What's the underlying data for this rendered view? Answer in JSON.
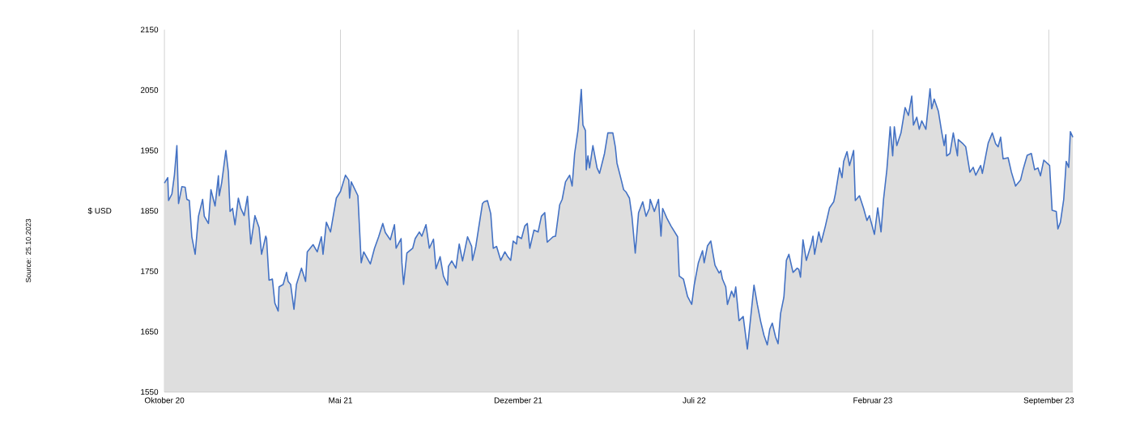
{
  "chart_data": {
    "type": "area",
    "ylabel": "$ USD",
    "annotations": [
      "Source: 25.10.2023"
    ],
    "grid": "x",
    "ylim": [
      1550,
      2150
    ],
    "yticks": [
      1550,
      1650,
      1750,
      1850,
      1950,
      2050,
      2150
    ],
    "xlim": [
      "2020-10-26",
      "2023-10-25"
    ],
    "xticks": [
      {
        "value": "2020-10-26",
        "label": "Oktober 20"
      },
      {
        "value": "2021-05-26",
        "label": "Mai 21"
      },
      {
        "value": "2021-12-26",
        "label": "Dezember 21"
      },
      {
        "value": "2022-07-26",
        "label": "Juli 22"
      },
      {
        "value": "2023-02-26",
        "label": "Februar 23"
      },
      {
        "value": "2023-09-26",
        "label": "September 23"
      }
    ],
    "series": [
      {
        "color": "#4472c4",
        "x": [
          "2020-10-26",
          "2020-10-30",
          "2020-10-31",
          "2020-11-04",
          "2020-11-07",
          "2020-11-10",
          "2020-11-12",
          "2020-11-16",
          "2020-11-20",
          "2020-11-22",
          "2020-11-25",
          "2020-11-28",
          "2020-12-02",
          "2020-12-06",
          "2020-12-11",
          "2020-12-13",
          "2020-12-18",
          "2020-12-21",
          "2020-12-26",
          "2020-12-30",
          "2020-12-31",
          "2021-01-03",
          "2021-01-08",
          "2021-01-11",
          "2021-01-13",
          "2021-01-16",
          "2021-01-19",
          "2021-01-23",
          "2021-01-26",
          "2021-01-30",
          "2021-02-03",
          "2021-02-07",
          "2021-02-12",
          "2021-02-17",
          "2021-02-20",
          "2021-02-25",
          "2021-02-26",
          "2021-03-01",
          "2021-03-05",
          "2021-03-08",
          "2021-03-12",
          "2021-03-13",
          "2021-03-18",
          "2021-03-22",
          "2021-03-24",
          "2021-03-27",
          "2021-03-31",
          "2021-04-03",
          "2021-04-09",
          "2021-04-14",
          "2021-04-16",
          "2021-04-23",
          "2021-04-28",
          "2021-05-03",
          "2021-05-05",
          "2021-05-09",
          "2021-05-14",
          "2021-05-21",
          "2021-05-26",
          "2021-06-01",
          "2021-06-05",
          "2021-06-06",
          "2021-06-08",
          "2021-06-16",
          "2021-06-20",
          "2021-06-23",
          "2021-07-01",
          "2021-07-06",
          "2021-07-11",
          "2021-07-16",
          "2021-07-19",
          "2021-07-25",
          "2021-07-30",
          "2021-08-01",
          "2021-08-07",
          "2021-08-08",
          "2021-08-10",
          "2021-08-14",
          "2021-08-21",
          "2021-08-24",
          "2021-08-29",
          "2021-09-01",
          "2021-09-06",
          "2021-09-10",
          "2021-09-15",
          "2021-09-18",
          "2021-09-23",
          "2021-09-27",
          "2021-10-02",
          "2021-10-03",
          "2021-10-07",
          "2021-10-12",
          "2021-10-16",
          "2021-10-20",
          "2021-10-26",
          "2021-10-31",
          "2021-11-01",
          "2021-11-05",
          "2021-11-08",
          "2021-11-13",
          "2021-11-15",
          "2021-11-19",
          "2021-11-23",
          "2021-11-26",
          "2021-11-30",
          "2021-12-05",
          "2021-12-10",
          "2021-12-13",
          "2021-12-17",
          "2021-12-20",
          "2021-12-24",
          "2021-12-25",
          "2021-12-30",
          "2022-01-03",
          "2022-01-06",
          "2022-01-09",
          "2022-01-14",
          "2022-01-19",
          "2022-01-23",
          "2022-01-27",
          "2022-01-30",
          "2022-02-06",
          "2022-02-09",
          "2022-02-14",
          "2022-02-17",
          "2022-02-21",
          "2022-02-26",
          "2022-03-01",
          "2022-03-04",
          "2022-03-08",
          "2022-03-12",
          "2022-03-14",
          "2022-03-17",
          "2022-03-18",
          "2022-03-20",
          "2022-03-22",
          "2022-03-26",
          "2022-03-31",
          "2022-04-03",
          "2022-04-09",
          "2022-04-13",
          "2022-04-19",
          "2022-04-22",
          "2022-04-24",
          "2022-04-29",
          "2022-05-02",
          "2022-05-05",
          "2022-05-09",
          "2022-05-12",
          "2022-05-16",
          "2022-05-20",
          "2022-05-25",
          "2022-05-29",
          "2022-06-02",
          "2022-06-03",
          "2022-06-08",
          "2022-06-13",
          "2022-06-16",
          "2022-06-18",
          "2022-06-23",
          "2022-06-28",
          "2022-07-06",
          "2022-07-08",
          "2022-07-13",
          "2022-07-18",
          "2022-07-23",
          "2022-07-26",
          "2022-07-31",
          "2022-08-05",
          "2022-08-07",
          "2022-08-11",
          "2022-08-15",
          "2022-08-20",
          "2022-08-25",
          "2022-08-27",
          "2022-08-29",
          "2022-09-02",
          "2022-09-04",
          "2022-09-09",
          "2022-09-12",
          "2022-09-14",
          "2022-09-18",
          "2022-09-23",
          "2022-09-28",
          "2022-10-01",
          "2022-10-06",
          "2022-10-10",
          "2022-10-14",
          "2022-10-18",
          "2022-10-22",
          "2022-10-25",
          "2022-10-28",
          "2022-11-01",
          "2022-11-04",
          "2022-11-07",
          "2022-11-11",
          "2022-11-14",
          "2022-11-17",
          "2022-11-22",
          "2022-11-27",
          "2022-11-29",
          "2022-12-01",
          "2022-12-04",
          "2022-12-08",
          "2022-12-14",
          "2022-12-16",
          "2022-12-18",
          "2022-12-23",
          "2022-12-26",
          "2022-12-31",
          "2023-01-05",
          "2023-01-10",
          "2023-01-12",
          "2023-01-17",
          "2023-01-20",
          "2023-01-22",
          "2023-01-26",
          "2023-01-29",
          "2023-02-03",
          "2023-02-05",
          "2023-02-10",
          "2023-02-15",
          "2023-02-19",
          "2023-02-22",
          "2023-02-28",
          "2023-03-04",
          "2023-03-08",
          "2023-03-11",
          "2023-03-15",
          "2023-03-19",
          "2023-03-22",
          "2023-03-24",
          "2023-03-27",
          "2023-04-01",
          "2023-04-06",
          "2023-04-10",
          "2023-04-14",
          "2023-04-16",
          "2023-04-20",
          "2023-04-23",
          "2023-04-26",
          "2023-05-01",
          "2023-05-06",
          "2023-05-08",
          "2023-05-11",
          "2023-05-16",
          "2023-05-20",
          "2023-05-23",
          "2023-05-25",
          "2023-05-26",
          "2023-05-30",
          "2023-06-03",
          "2023-06-08",
          "2023-06-09",
          "2023-06-14",
          "2023-06-18",
          "2023-06-23",
          "2023-06-27",
          "2023-06-30",
          "2023-07-06",
          "2023-07-08",
          "2023-07-15",
          "2023-07-20",
          "2023-07-24",
          "2023-07-27",
          "2023-07-30",
          "2023-08-02",
          "2023-08-08",
          "2023-08-12",
          "2023-08-17",
          "2023-08-23",
          "2023-08-26",
          "2023-08-31",
          "2023-09-05",
          "2023-09-09",
          "2023-09-13",
          "2023-09-16",
          "2023-09-20",
          "2023-09-27",
          "2023-09-30",
          "2023-10-05",
          "2023-10-07",
          "2023-10-10",
          "2023-10-14",
          "2023-10-17",
          "2023-10-20",
          "2023-10-22",
          "2023-10-25"
        ],
        "values": [
          1896,
          1905,
          1867,
          1878,
          1909,
          1958,
          1862,
          1890,
          1889,
          1869,
          1867,
          1807,
          1778,
          1841,
          1869,
          1841,
          1829,
          1885,
          1858,
          1908,
          1875,
          1897,
          1950,
          1914,
          1849,
          1854,
          1827,
          1871,
          1854,
          1842,
          1874,
          1795,
          1842,
          1822,
          1778,
          1808,
          1804,
          1735,
          1737,
          1697,
          1684,
          1724,
          1728,
          1748,
          1733,
          1728,
          1687,
          1728,
          1755,
          1733,
          1782,
          1794,
          1782,
          1807,
          1778,
          1831,
          1815,
          1871,
          1882,
          1909,
          1901,
          1871,
          1898,
          1875,
          1764,
          1782,
          1762,
          1788,
          1807,
          1829,
          1814,
          1802,
          1827,
          1788,
          1804,
          1764,
          1728,
          1780,
          1788,
          1804,
          1815,
          1808,
          1827,
          1788,
          1803,
          1754,
          1774,
          1742,
          1727,
          1758,
          1767,
          1755,
          1795,
          1767,
          1807,
          1791,
          1768,
          1791,
          1818,
          1862,
          1865,
          1867,
          1845,
          1788,
          1791,
          1768,
          1782,
          1775,
          1768,
          1800,
          1795,
          1808,
          1804,
          1825,
          1829,
          1788,
          1818,
          1815,
          1841,
          1847,
          1798,
          1807,
          1808,
          1860,
          1869,
          1898,
          1909,
          1891,
          1945,
          1983,
          2051,
          1992,
          1983,
          1918,
          1941,
          1921,
          1958,
          1921,
          1912,
          1945,
          1979,
          1979,
          1956,
          1929,
          1902,
          1885,
          1881,
          1871,
          1841,
          1780,
          1847,
          1865,
          1841,
          1854,
          1869,
          1849,
          1869,
          1808,
          1854,
          1838,
          1825,
          1807,
          1742,
          1737,
          1708,
          1695,
          1727,
          1764,
          1784,
          1764,
          1792,
          1800,
          1760,
          1747,
          1751,
          1737,
          1724,
          1695,
          1717,
          1707,
          1724,
          1668,
          1675,
          1621,
          1660,
          1727,
          1695,
          1667,
          1644,
          1628,
          1654,
          1664,
          1641,
          1630,
          1680,
          1707,
          1768,
          1778,
          1748,
          1755,
          1753,
          1740,
          1802,
          1768,
          1795,
          1808,
          1778,
          1815,
          1798,
          1825,
          1855,
          1865,
          1878,
          1921,
          1905,
          1932,
          1948,
          1925,
          1950,
          1867,
          1875,
          1854,
          1834,
          1842,
          1811,
          1855,
          1815,
          1869,
          1918,
          1989,
          1941,
          1989,
          1958,
          1979,
          2021,
          2008,
          2040,
          1992,
          2005,
          1985,
          1999,
          1985,
          2052,
          2019,
          2035,
          2015,
          1981,
          1958,
          1976,
          1941,
          1945,
          1979,
          1941,
          1968,
          1962,
          1956,
          1914,
          1922,
          1909,
          1925,
          1912,
          1962,
          1979,
          1961,
          1956,
          1972,
          1936,
          1938,
          1914,
          1891,
          1901,
          1918,
          1942,
          1945,
          1918,
          1921,
          1908,
          1934,
          1925,
          1851,
          1849,
          1820,
          1831,
          1869,
          1932,
          1922,
          1981,
          1972
        ]
      }
    ]
  }
}
